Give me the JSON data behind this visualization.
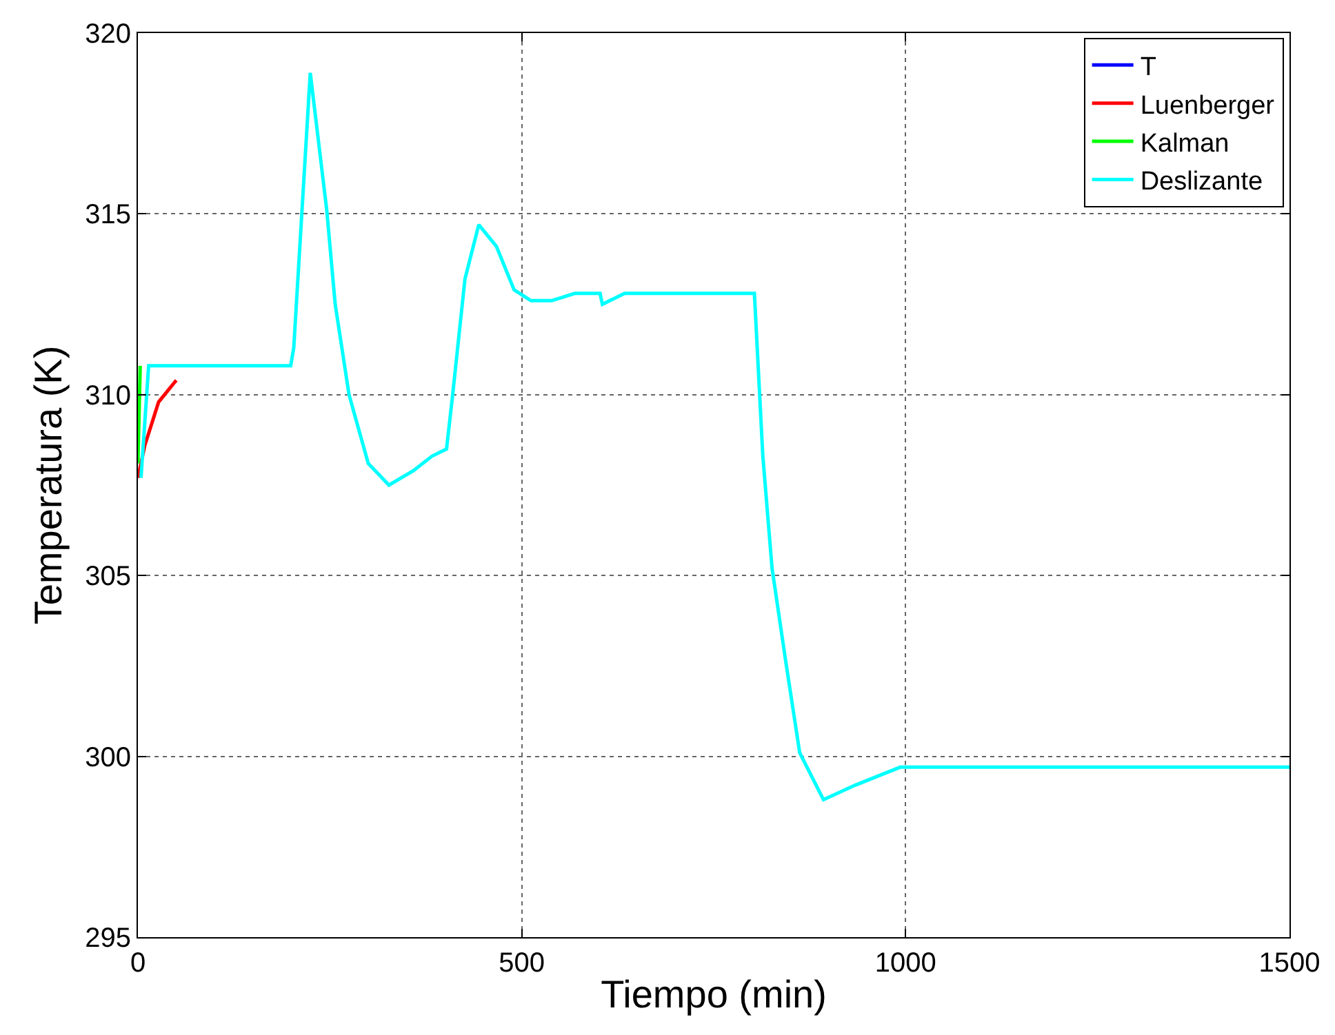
{
  "chart_data": {
    "type": "line",
    "xlabel": "Tiempo (min)",
    "ylabel": "Temperatura (K)",
    "xlim": [
      0,
      1500
    ],
    "ylim": [
      295,
      320
    ],
    "xticks": [
      0,
      500,
      1000,
      1500
    ],
    "yticks": [
      295,
      300,
      305,
      310,
      315,
      320
    ],
    "grid": true,
    "legend": "top right",
    "line_style": "solid",
    "marker": "none",
    "series": [
      {
        "name": "T",
        "color": "#0000ff"
      },
      {
        "name": "Luenberger",
        "color": "#ff0000",
        "x": [
          0,
          9,
          27,
          50
        ],
        "values": [
          307.7,
          308.6,
          309.8,
          310.4
        ]
      },
      {
        "name": "Kalman",
        "color": "#00ff00",
        "x": [
          0,
          3
        ],
        "values": [
          308.1,
          310.8
        ]
      },
      {
        "name": "Deslizante",
        "color": "#00ffff",
        "x": [
          4,
          14,
          100,
          199,
          203,
          224.5,
          246,
          257,
          275,
          300,
          327,
          359,
          383,
          402,
          410,
          426,
          444,
          467,
          490,
          512,
          539,
          569,
          602,
          605,
          634,
          670,
          803,
          814,
          826,
          844,
          862,
          893,
          934,
          993,
          1204,
          1500
        ],
        "values": [
          307.7,
          310.8,
          310.8,
          310.8,
          311.3,
          318.9,
          315.1,
          312.5,
          310.0,
          308.1,
          307.5,
          307.9,
          308.3,
          308.5,
          310.0,
          313.2,
          314.7,
          314.1,
          312.9,
          312.6,
          312.6,
          312.8,
          312.8,
          312.5,
          312.8,
          312.8,
          312.8,
          308.3,
          305.2,
          302.6,
          300.1,
          298.8,
          299.2,
          299.7,
          299.7,
          299.7
        ]
      }
    ]
  }
}
